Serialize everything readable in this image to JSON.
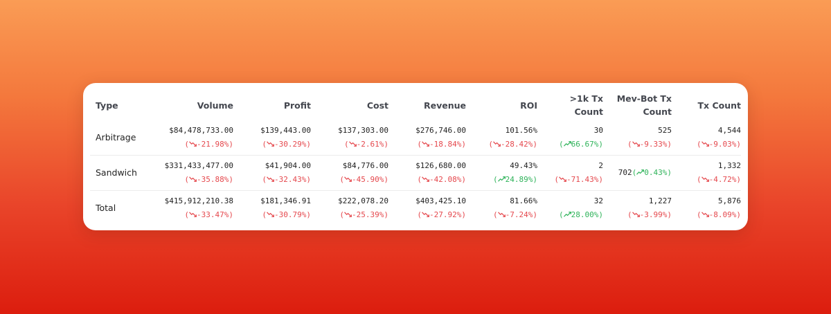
{
  "columns": [
    "Type",
    "Volume",
    "Profit",
    "Cost",
    "Revenue",
    "ROI",
    ">1k Tx\nCount",
    "Mev-Bot Tx\nCount",
    "Tx Count"
  ],
  "column_labels": {
    "type": "Type",
    "volume": "Volume",
    "profit": "Profit",
    "cost": "Cost",
    "revenue": "Revenue",
    "roi": "ROI",
    "tx1k_line1": ">1k Tx",
    "tx1k_line2": "Count",
    "mev_line1": "Mev-Bot Tx",
    "mev_line2": "Count",
    "txcount": "Tx Count"
  },
  "colors": {
    "up": "#2fb35a",
    "down": "#e5484d"
  },
  "rows": [
    {
      "type": "Arbitrage",
      "cells": [
        {
          "value": "$84,478,733.00",
          "change": "-21.98%",
          "dir": "down"
        },
        {
          "value": "$139,443.00",
          "change": "-30.29%",
          "dir": "down"
        },
        {
          "value": "$137,303.00",
          "change": "-2.61%",
          "dir": "down"
        },
        {
          "value": "$276,746.00",
          "change": "-18.84%",
          "dir": "down"
        },
        {
          "value": "101.56%",
          "change": "-28.42%",
          "dir": "down"
        },
        {
          "value": "30",
          "change": "66.67%",
          "dir": "up"
        },
        {
          "value": "525",
          "change": "-9.33%",
          "dir": "down"
        },
        {
          "value": "4,544",
          "change": "-9.03%",
          "dir": "down"
        }
      ]
    },
    {
      "type": "Sandwich",
      "cells": [
        {
          "value": "$331,433,477.00",
          "change": "-35.88%",
          "dir": "down"
        },
        {
          "value": "$41,904.00",
          "change": "-32.43%",
          "dir": "down"
        },
        {
          "value": "$84,776.00",
          "change": "-45.90%",
          "dir": "down"
        },
        {
          "value": "$126,680.00",
          "change": "-42.08%",
          "dir": "down"
        },
        {
          "value": "49.43%",
          "change": "24.89%",
          "dir": "up"
        },
        {
          "value": "2",
          "change": "-71.43%",
          "dir": "down"
        },
        {
          "value": "702",
          "change": "0.43%",
          "dir": "up",
          "inline": true
        },
        {
          "value": "1,332",
          "change": "-4.72%",
          "dir": "down"
        }
      ]
    },
    {
      "type": "Total",
      "cells": [
        {
          "value": "$415,912,210.38",
          "change": "-33.47%",
          "dir": "down"
        },
        {
          "value": "$181,346.91",
          "change": "-30.79%",
          "dir": "down"
        },
        {
          "value": "$222,078.20",
          "change": "-25.39%",
          "dir": "down"
        },
        {
          "value": "$403,425.10",
          "change": "-27.92%",
          "dir": "down"
        },
        {
          "value": "81.66%",
          "change": "-7.24%",
          "dir": "down"
        },
        {
          "value": "32",
          "change": "28.00%",
          "dir": "up"
        },
        {
          "value": "1,227",
          "change": "-3.99%",
          "dir": "down"
        },
        {
          "value": "5,876",
          "change": "-8.09%",
          "dir": "down"
        }
      ]
    }
  ]
}
